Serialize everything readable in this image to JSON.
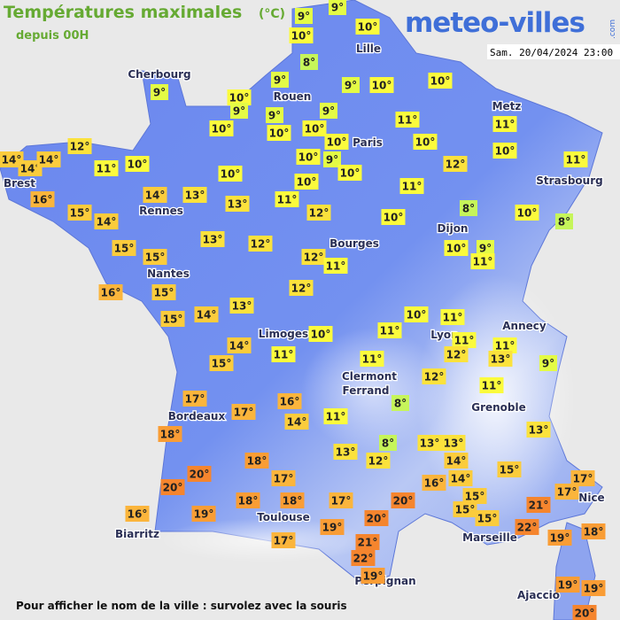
{
  "header": {
    "title": "Températures maximales",
    "unit": "(°C)",
    "subtitle": "depuis 00H",
    "logo": "meteo-villes",
    "logo_suffix": ".com",
    "date": "Sam. 20/04/2024 23:00"
  },
  "footer": "Pour afficher le nom de la ville : survolez avec la souris",
  "cities": [
    "Lille",
    "Cherbourg",
    "Rouen",
    "Paris",
    "Metz",
    "Strasbourg",
    "Brest",
    "Rennes",
    "Dijon",
    "Bourges",
    "Nantes",
    "Annecy",
    "Limoges",
    "Lyon",
    "Clermont",
    "Ferrand",
    "Grenoble",
    "Bordeaux",
    "Toulouse",
    "Nice",
    "Biarritz",
    "Marseille",
    "Perpignan",
    "Ajaccio"
  ],
  "labels": [
    "9°",
    "9°",
    "10°",
    "10°",
    "8°",
    "9°",
    "9°",
    "10°",
    "9°",
    "9°",
    "10°",
    "10°",
    "9°",
    "9°",
    "10°",
    "10°",
    "10°",
    "10°",
    "11°",
    "11°",
    "12°",
    "14°",
    "14°",
    "14°",
    "11°",
    "10°",
    "10°",
    "9°",
    "10°",
    "10°",
    "10°",
    "12°",
    "11°",
    "10°",
    "10°",
    "11°",
    "16°",
    "14°",
    "13°",
    "13°",
    "11°",
    "12°",
    "15°",
    "14°",
    "10°",
    "8°",
    "10°",
    "8°",
    "13°",
    "12°",
    "15°",
    "15°",
    "12°",
    "11°",
    "10°",
    "9°",
    "11°",
    "16°",
    "15°",
    "12°",
    "13°",
    "15°",
    "14°",
    "10°",
    "11°",
    "10°",
    "11°",
    "11°",
    "11°",
    "14°",
    "11°",
    "12°",
    "13°",
    "15°",
    "9°",
    "11°",
    "12°",
    "11°",
    "17°",
    "16°",
    "8°",
    "17°",
    "14°",
    "11°",
    "18°",
    "13°",
    "8°",
    "13°",
    "13°",
    "13°",
    "12°",
    "14°",
    "18°",
    "15°",
    "20°",
    "14°",
    "17°",
    "20°",
    "16°",
    "17°",
    "17°",
    "15°",
    "18°",
    "18°",
    "17°",
    "20°",
    "15°",
    "21°",
    "16°",
    "19°",
    "20°",
    "15°",
    "22°",
    "19°",
    "18°",
    "19°",
    "17°",
    "21°",
    "22°",
    "19°",
    "19°",
    "19°",
    "20°"
  ]
}
